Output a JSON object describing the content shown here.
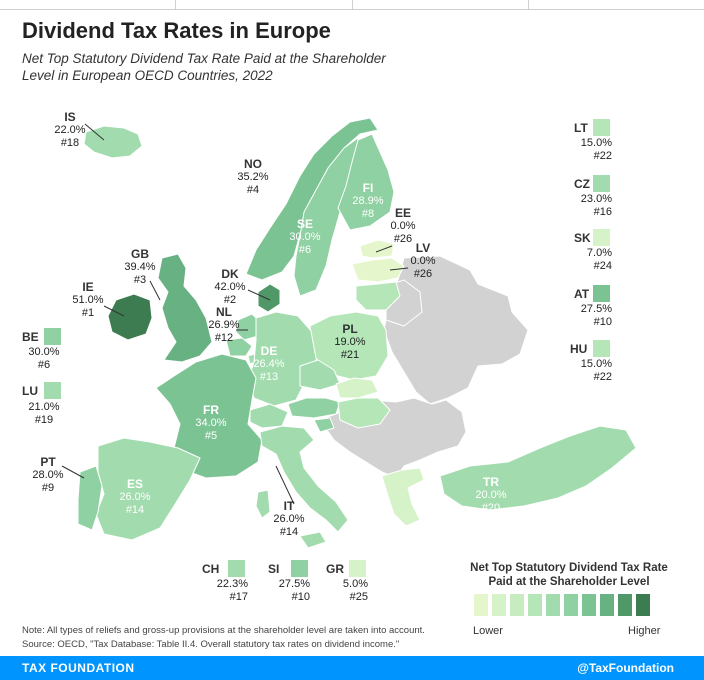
{
  "header": {
    "title": "Dividend Tax Rates in Europe",
    "subtitle": "Net Top Statutory Dividend Tax Rate Paid at the Shareholder Level in European OECD Countries, 2022"
  },
  "countries": {
    "IS": {
      "code": "IS",
      "rate": "22.0%",
      "rank": "#18"
    },
    "NO": {
      "code": "NO",
      "rate": "35.2%",
      "rank": "#4"
    },
    "FI": {
      "code": "FI",
      "rate": "28.9%",
      "rank": "#8"
    },
    "SE": {
      "code": "SE",
      "rate": "30.0%",
      "rank": "#6"
    },
    "EE": {
      "code": "EE",
      "rate": "0.0%",
      "rank": "#26"
    },
    "LV": {
      "code": "LV",
      "rate": "0.0%",
      "rank": "#26"
    },
    "GB": {
      "code": "GB",
      "rate": "39.4%",
      "rank": "#3"
    },
    "DK": {
      "code": "DK",
      "rate": "42.0%",
      "rank": "#2"
    },
    "IE": {
      "code": "IE",
      "rate": "51.0%",
      "rank": "#1"
    },
    "NL": {
      "code": "NL",
      "rate": "26.9%",
      "rank": "#12"
    },
    "PL": {
      "code": "PL",
      "rate": "19.0%",
      "rank": "#21"
    },
    "DE": {
      "code": "DE",
      "rate": "26.4%",
      "rank": "#13"
    },
    "FR": {
      "code": "FR",
      "rate": "34.0%",
      "rank": "#5"
    },
    "BE": {
      "code": "BE",
      "rate": "30.0%",
      "rank": "#6"
    },
    "LU": {
      "code": "LU",
      "rate": "21.0%",
      "rank": "#19"
    },
    "PT": {
      "code": "PT",
      "rate": "28.0%",
      "rank": "#9"
    },
    "ES": {
      "code": "ES",
      "rate": "26.0%",
      "rank": "#14"
    },
    "IT": {
      "code": "IT",
      "rate": "26.0%",
      "rank": "#14"
    },
    "TR": {
      "code": "TR",
      "rate": "20.0%",
      "rank": "#20"
    },
    "LT": {
      "code": "LT",
      "rate": "15.0%",
      "rank": "#22"
    },
    "CZ": {
      "code": "CZ",
      "rate": "23.0%",
      "rank": "#16"
    },
    "SK": {
      "code": "SK",
      "rate": "7.0%",
      "rank": "#24"
    },
    "AT": {
      "code": "AT",
      "rate": "27.5%",
      "rank": "#10"
    },
    "HU": {
      "code": "HU",
      "rate": "15.0%",
      "rank": "#22"
    },
    "CH": {
      "code": "CH",
      "rate": "22.3%",
      "rank": "#17"
    },
    "SI": {
      "code": "SI",
      "rate": "27.5%",
      "rank": "#10"
    },
    "GR": {
      "code": "GR",
      "rate": "5.0%",
      "rank": "#25"
    }
  },
  "legend": {
    "title": "Net Top Statutory Dividend Tax Rate Paid at the Shareholder Level",
    "low_label": "Lower",
    "high_label": "Higher",
    "colors": [
      "#e6f6cc",
      "#d6f2c8",
      "#c6ecc0",
      "#b4e6b8",
      "#a2dcae",
      "#8fd1a2",
      "#7cc394",
      "#68b183",
      "#519868",
      "#3d7c50"
    ]
  },
  "colors": {
    "no_data": "#d2d2d2",
    "footer": "#0094ff"
  },
  "notes": {
    "note": "Note: All types of reliefs and gross-up provisions at the shareholder level are taken into account.",
    "source": "Source: OECD, \"Tax Database: Table II.4. Overall statutory tax rates on dividend income.\""
  },
  "footer": {
    "brand": "TAX FOUNDATION",
    "handle": "@TaxFoundation"
  }
}
